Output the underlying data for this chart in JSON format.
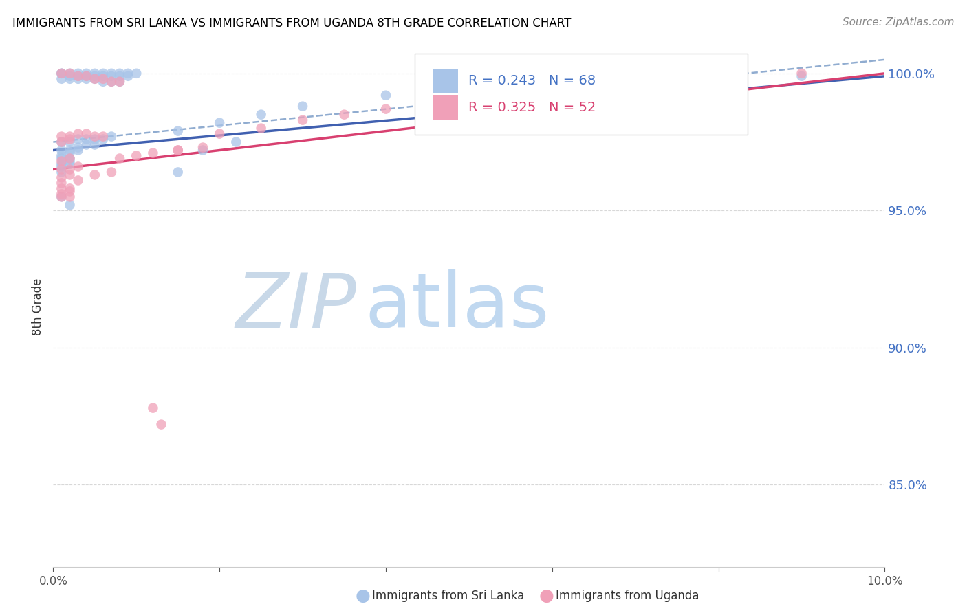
{
  "title": "IMMIGRANTS FROM SRI LANKA VS IMMIGRANTS FROM UGANDA 8TH GRADE CORRELATION CHART",
  "source": "Source: ZipAtlas.com",
  "ylabel": "8th Grade",
  "xmin": 0.0,
  "xmax": 0.1,
  "ymin": 0.82,
  "ymax": 1.01,
  "yticks": [
    0.85,
    0.9,
    0.95,
    1.0
  ],
  "ytick_labels": [
    "85.0%",
    "90.0%",
    "95.0%",
    "100.0%"
  ],
  "R_sri_lanka": "0.243",
  "N_sri_lanka": "68",
  "R_uganda": "0.325",
  "N_uganda": "52",
  "color_sri_lanka": "#a8c4e8",
  "color_uganda": "#f0a0b8",
  "line_color_sri_lanka": "#4060b0",
  "line_color_uganda": "#d84070",
  "trendline_dash_color": "#90acd0",
  "background_color": "#ffffff",
  "watermark_zip_color": "#c8d8e8",
  "watermark_atlas_color": "#c0d8f0",
  "legend_text_color_blue": "#4472c4",
  "legend_text_color_pink": "#d84070",
  "source_color": "#888888",
  "grid_color": "#d8d8d8",
  "spine_color": "#cccccc",
  "ylabel_color": "#333333",
  "bottom_label_color": "#333333"
}
